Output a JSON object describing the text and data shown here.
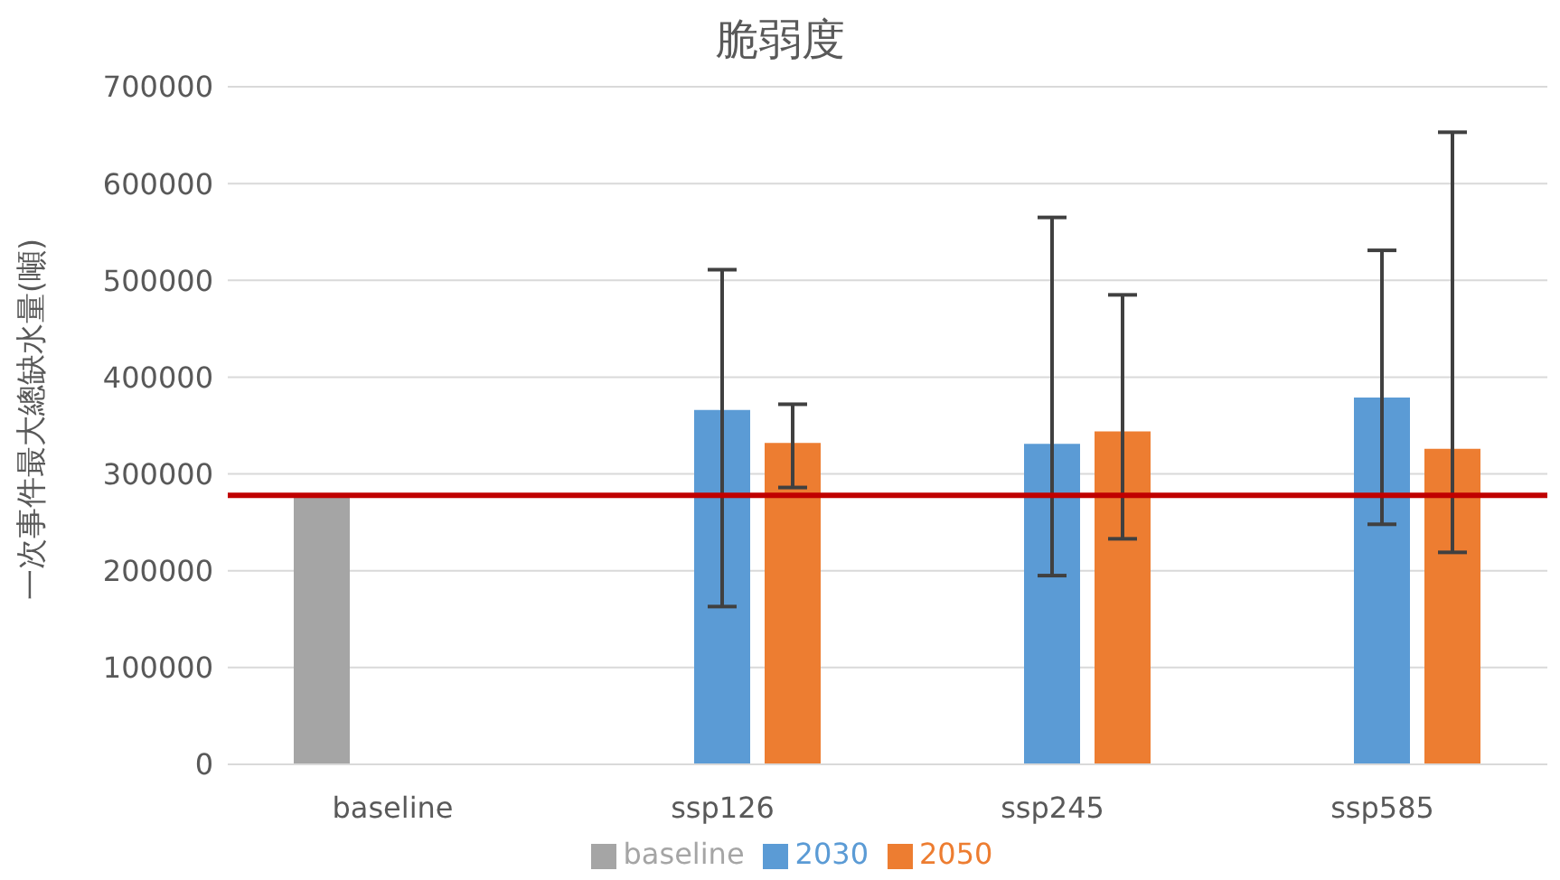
{
  "chart_data": {
    "type": "bar",
    "title": "脆弱度",
    "ylabel": "一次事件最大總缺水量(噸)",
    "categories": [
      "baseline",
      "ssp126",
      "ssp245",
      "ssp585"
    ],
    "series": [
      {
        "name": "baseline",
        "color": "#a5a5a5",
        "values": [
          278000,
          null,
          null,
          null
        ]
      },
      {
        "name": "2030",
        "color": "#5b9bd5",
        "values": [
          null,
          366000,
          331000,
          379000
        ],
        "errors": [
          null,
          [
            163000,
            511000
          ],
          [
            195000,
            565000
          ],
          [
            248000,
            531000
          ]
        ]
      },
      {
        "name": "2050",
        "color": "#ed7d31",
        "values": [
          null,
          332000,
          344000,
          326000
        ],
        "errors": [
          null,
          [
            286000,
            372000
          ],
          [
            233000,
            485000
          ],
          [
            219000,
            653000
          ]
        ]
      }
    ],
    "ylim": [
      0,
      700000
    ],
    "yticks": [
      0,
      100000,
      200000,
      300000,
      400000,
      500000,
      600000,
      700000
    ],
    "grid": "y",
    "legend": "bottom",
    "ref_lines": [
      {
        "axis": "y",
        "value": 278000,
        "color": "#c00000"
      }
    ]
  }
}
